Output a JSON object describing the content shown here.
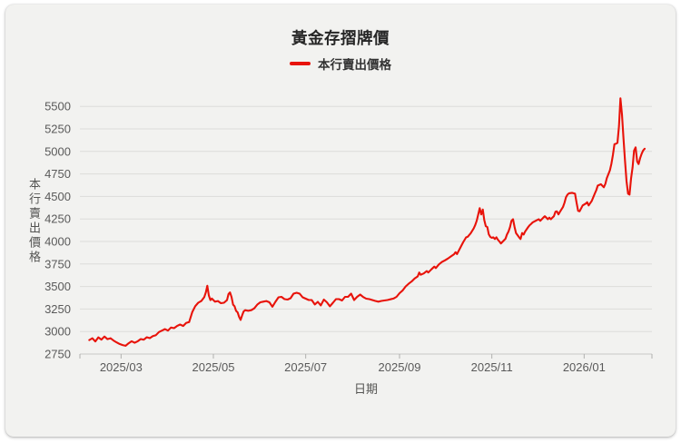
{
  "chart_data": {
    "type": "line",
    "title": "黃金存摺牌價",
    "legend_label": "本行賣出價格",
    "legend_position": "top",
    "xlabel": "日期",
    "ylabel": "本行賣出價格",
    "grid": true,
    "line_color": "#e8130a",
    "ylim": [
      2750,
      5500
    ],
    "y_ticks": [
      2750,
      3000,
      3250,
      3500,
      3750,
      4000,
      4250,
      4500,
      4750,
      5000,
      5250,
      5500
    ],
    "x_ticks": [
      "2025/03",
      "2025/05",
      "2025/07",
      "2025/09",
      "2025/11",
      "2026/01"
    ],
    "x_range": [
      "2025/02/06",
      "2026/02/10"
    ],
    "series": [
      {
        "name": "本行賣出價格",
        "points": [
          [
            "2025/02/08",
            2905
          ],
          [
            "2025/02/10",
            2925
          ],
          [
            "2025/02/12",
            2890
          ],
          [
            "2025/02/14",
            2935
          ],
          [
            "2025/02/16",
            2910
          ],
          [
            "2025/02/18",
            2945
          ],
          [
            "2025/02/20",
            2915
          ],
          [
            "2025/02/22",
            2925
          ],
          [
            "2025/02/24",
            2900
          ],
          [
            "2025/02/26",
            2880
          ],
          [
            "2025/02/28",
            2862
          ],
          [
            "2025/03/02",
            2850
          ],
          [
            "2025/03/04",
            2842
          ],
          [
            "2025/03/06",
            2870
          ],
          [
            "2025/03/08",
            2892
          ],
          [
            "2025/03/10",
            2875
          ],
          [
            "2025/03/12",
            2892
          ],
          [
            "2025/03/14",
            2916
          ],
          [
            "2025/03/16",
            2909
          ],
          [
            "2025/03/18",
            2936
          ],
          [
            "2025/03/20",
            2926
          ],
          [
            "2025/03/22",
            2949
          ],
          [
            "2025/03/24",
            2960
          ],
          [
            "2025/03/26",
            2994
          ],
          [
            "2025/03/28",
            3010
          ],
          [
            "2025/03/30",
            3027
          ],
          [
            "2025/04/01",
            3010
          ],
          [
            "2025/04/03",
            3044
          ],
          [
            "2025/04/05",
            3037
          ],
          [
            "2025/04/07",
            3061
          ],
          [
            "2025/04/09",
            3078
          ],
          [
            "2025/04/11",
            3061
          ],
          [
            "2025/04/13",
            3095
          ],
          [
            "2025/04/15",
            3105
          ],
          [
            "2025/04/17",
            3215
          ],
          [
            "2025/04/19",
            3281
          ],
          [
            "2025/04/21",
            3320
          ],
          [
            "2025/04/23",
            3339
          ],
          [
            "2025/04/25",
            3383
          ],
          [
            "2025/04/26",
            3434
          ],
          [
            "2025/04/27",
            3508
          ],
          [
            "2025/04/28",
            3400
          ],
          [
            "2025/04/29",
            3349
          ],
          [
            "2025/04/30",
            3366
          ],
          [
            "2025/05/02",
            3332
          ],
          [
            "2025/05/04",
            3339
          ],
          [
            "2025/05/06",
            3315
          ],
          [
            "2025/05/08",
            3320
          ],
          [
            "2025/05/10",
            3349
          ],
          [
            "2025/05/11",
            3417
          ],
          [
            "2025/05/12",
            3434
          ],
          [
            "2025/05/13",
            3383
          ],
          [
            "2025/05/14",
            3298
          ],
          [
            "2025/05/15",
            3281
          ],
          [
            "2025/05/16",
            3230
          ],
          [
            "2025/05/17",
            3213
          ],
          [
            "2025/05/18",
            3163
          ],
          [
            "2025/05/19",
            3129
          ],
          [
            "2025/05/20",
            3180
          ],
          [
            "2025/05/21",
            3223
          ],
          [
            "2025/05/22",
            3237
          ],
          [
            "2025/05/24",
            3230
          ],
          [
            "2025/05/26",
            3237
          ],
          [
            "2025/05/28",
            3257
          ],
          [
            "2025/05/30",
            3298
          ],
          [
            "2025/06/01",
            3325
          ],
          [
            "2025/06/03",
            3332
          ],
          [
            "2025/06/05",
            3339
          ],
          [
            "2025/06/07",
            3325
          ],
          [
            "2025/06/09",
            3275
          ],
          [
            "2025/06/11",
            3330
          ],
          [
            "2025/06/13",
            3380
          ],
          [
            "2025/06/15",
            3385
          ],
          [
            "2025/06/17",
            3360
          ],
          [
            "2025/06/19",
            3355
          ],
          [
            "2025/06/21",
            3370
          ],
          [
            "2025/06/23",
            3420
          ],
          [
            "2025/06/25",
            3430
          ],
          [
            "2025/06/27",
            3420
          ],
          [
            "2025/06/29",
            3380
          ],
          [
            "2025/07/01",
            3365
          ],
          [
            "2025/07/03",
            3350
          ],
          [
            "2025/07/05",
            3350
          ],
          [
            "2025/07/07",
            3300
          ],
          [
            "2025/07/09",
            3330
          ],
          [
            "2025/07/11",
            3290
          ],
          [
            "2025/07/13",
            3355
          ],
          [
            "2025/07/15",
            3325
          ],
          [
            "2025/07/17",
            3280
          ],
          [
            "2025/07/19",
            3320
          ],
          [
            "2025/07/21",
            3360
          ],
          [
            "2025/07/23",
            3360
          ],
          [
            "2025/07/25",
            3345
          ],
          [
            "2025/07/27",
            3385
          ],
          [
            "2025/07/29",
            3385
          ],
          [
            "2025/07/31",
            3420
          ],
          [
            "2025/08/02",
            3350
          ],
          [
            "2025/08/04",
            3385
          ],
          [
            "2025/08/06",
            3410
          ],
          [
            "2025/08/08",
            3383
          ],
          [
            "2025/08/10",
            3365
          ],
          [
            "2025/08/12",
            3360
          ],
          [
            "2025/08/14",
            3350
          ],
          [
            "2025/08/16",
            3340
          ],
          [
            "2025/08/18",
            3332
          ],
          [
            "2025/08/20",
            3340
          ],
          [
            "2025/08/22",
            3345
          ],
          [
            "2025/08/24",
            3350
          ],
          [
            "2025/08/26",
            3358
          ],
          [
            "2025/08/28",
            3366
          ],
          [
            "2025/08/30",
            3385
          ],
          [
            "2025/09/01",
            3425
          ],
          [
            "2025/09/03",
            3455
          ],
          [
            "2025/09/05",
            3500
          ],
          [
            "2025/09/07",
            3530
          ],
          [
            "2025/09/09",
            3555
          ],
          [
            "2025/09/11",
            3590
          ],
          [
            "2025/09/13",
            3612
          ],
          [
            "2025/09/14",
            3655
          ],
          [
            "2025/09/15",
            3630
          ],
          [
            "2025/09/17",
            3645
          ],
          [
            "2025/09/19",
            3671
          ],
          [
            "2025/09/20",
            3655
          ],
          [
            "2025/09/22",
            3690
          ],
          [
            "2025/09/24",
            3721
          ],
          [
            "2025/09/25",
            3705
          ],
          [
            "2025/09/27",
            3745
          ],
          [
            "2025/09/29",
            3772
          ],
          [
            "2025/10/01",
            3790
          ],
          [
            "2025/10/03",
            3810
          ],
          [
            "2025/10/05",
            3835
          ],
          [
            "2025/10/07",
            3858
          ],
          [
            "2025/10/08",
            3881
          ],
          [
            "2025/10/09",
            3860
          ],
          [
            "2025/10/11",
            3925
          ],
          [
            "2025/10/13",
            3990
          ],
          [
            "2025/10/15",
            4045
          ],
          [
            "2025/10/16",
            4051
          ],
          [
            "2025/10/18",
            4090
          ],
          [
            "2025/10/20",
            4145
          ],
          [
            "2025/10/21",
            4180
          ],
          [
            "2025/10/22",
            4230
          ],
          [
            "2025/10/23",
            4300
          ],
          [
            "2025/10/24",
            4370
          ],
          [
            "2025/10/25",
            4300
          ],
          [
            "2025/10/26",
            4355
          ],
          [
            "2025/10/27",
            4240
          ],
          [
            "2025/10/28",
            4170
          ],
          [
            "2025/10/29",
            4160
          ],
          [
            "2025/10/30",
            4080
          ],
          [
            "2025/10/31",
            4050
          ],
          [
            "2025/11/01",
            4040
          ],
          [
            "2025/11/02",
            4046
          ],
          [
            "2025/11/03",
            4027
          ],
          [
            "2025/11/04",
            4046
          ],
          [
            "2025/11/05",
            4020
          ],
          [
            "2025/11/06",
            4000
          ],
          [
            "2025/11/07",
            3978
          ],
          [
            "2025/11/08",
            3995
          ],
          [
            "2025/11/10",
            4030
          ],
          [
            "2025/11/11",
            4077
          ],
          [
            "2025/11/12",
            4110
          ],
          [
            "2025/11/13",
            4160
          ],
          [
            "2025/11/14",
            4230
          ],
          [
            "2025/11/15",
            4247
          ],
          [
            "2025/11/16",
            4160
          ],
          [
            "2025/11/17",
            4094
          ],
          [
            "2025/11/19",
            4046
          ],
          [
            "2025/11/20",
            4027
          ],
          [
            "2025/11/21",
            4094
          ],
          [
            "2025/11/22",
            4077
          ],
          [
            "2025/11/23",
            4110
          ],
          [
            "2025/11/25",
            4160
          ],
          [
            "2025/11/26",
            4180
          ],
          [
            "2025/11/27",
            4196
          ],
          [
            "2025/11/28",
            4213
          ],
          [
            "2025/11/30",
            4230
          ],
          [
            "2025/12/02",
            4247
          ],
          [
            "2025/12/03",
            4230
          ],
          [
            "2025/12/04",
            4247
          ],
          [
            "2025/12/05",
            4264
          ],
          [
            "2025/12/06",
            4280
          ],
          [
            "2025/12/07",
            4264
          ],
          [
            "2025/12/08",
            4247
          ],
          [
            "2025/12/09",
            4264
          ],
          [
            "2025/12/10",
            4247
          ],
          [
            "2025/12/11",
            4264
          ],
          [
            "2025/12/12",
            4280
          ],
          [
            "2025/12/13",
            4330
          ],
          [
            "2025/12/14",
            4335
          ],
          [
            "2025/12/15",
            4300
          ],
          [
            "2025/12/16",
            4330
          ],
          [
            "2025/12/18",
            4382
          ],
          [
            "2025/12/19",
            4430
          ],
          [
            "2025/12/20",
            4490
          ],
          [
            "2025/12/21",
            4520
          ],
          [
            "2025/12/22",
            4535
          ],
          [
            "2025/12/24",
            4540
          ],
          [
            "2025/12/26",
            4530
          ],
          [
            "2025/12/27",
            4430
          ],
          [
            "2025/12/28",
            4340
          ],
          [
            "2025/12/29",
            4335
          ],
          [
            "2025/12/31",
            4400
          ],
          [
            "2026/01/02",
            4420
          ],
          [
            "2026/01/03",
            4435
          ],
          [
            "2026/01/04",
            4400
          ],
          [
            "2026/01/05",
            4425
          ],
          [
            "2026/01/06",
            4450
          ],
          [
            "2026/01/08",
            4530
          ],
          [
            "2026/01/09",
            4570
          ],
          [
            "2026/01/10",
            4620
          ],
          [
            "2026/01/12",
            4636
          ],
          [
            "2026/01/13",
            4620
          ],
          [
            "2026/01/14",
            4602
          ],
          [
            "2026/01/15",
            4640
          ],
          [
            "2026/01/16",
            4704
          ],
          [
            "2026/01/18",
            4790
          ],
          [
            "2026/01/19",
            4860
          ],
          [
            "2026/01/20",
            4960
          ],
          [
            "2026/01/21",
            5080
          ],
          [
            "2026/01/22",
            5085
          ],
          [
            "2026/01/23",
            5095
          ],
          [
            "2026/01/24",
            5280
          ],
          [
            "2026/01/25",
            5590
          ],
          [
            "2026/01/26",
            5410
          ],
          [
            "2026/01/27",
            5140
          ],
          [
            "2026/01/28",
            4900
          ],
          [
            "2026/01/29",
            4670
          ],
          [
            "2026/01/30",
            4530
          ],
          [
            "2026/01/31",
            4520
          ],
          [
            "2026/02/01",
            4700
          ],
          [
            "2026/02/02",
            4825
          ],
          [
            "2026/02/03",
            5008
          ],
          [
            "2026/02/04",
            5045
          ],
          [
            "2026/02/05",
            4890
          ],
          [
            "2026/02/06",
            4860
          ],
          [
            "2026/02/07",
            4925
          ],
          [
            "2026/02/08",
            4975
          ],
          [
            "2026/02/09",
            5010
          ],
          [
            "2026/02/10",
            5030
          ]
        ]
      }
    ]
  },
  "colors": {
    "card_background": "#f2f2f0",
    "gridline": "#dcdcda",
    "axis_line": "#c8c8c6",
    "tick": "#b0b0ae",
    "tick_label": "#5a5a5a",
    "title": "#262626",
    "line": "#e8130a"
  }
}
